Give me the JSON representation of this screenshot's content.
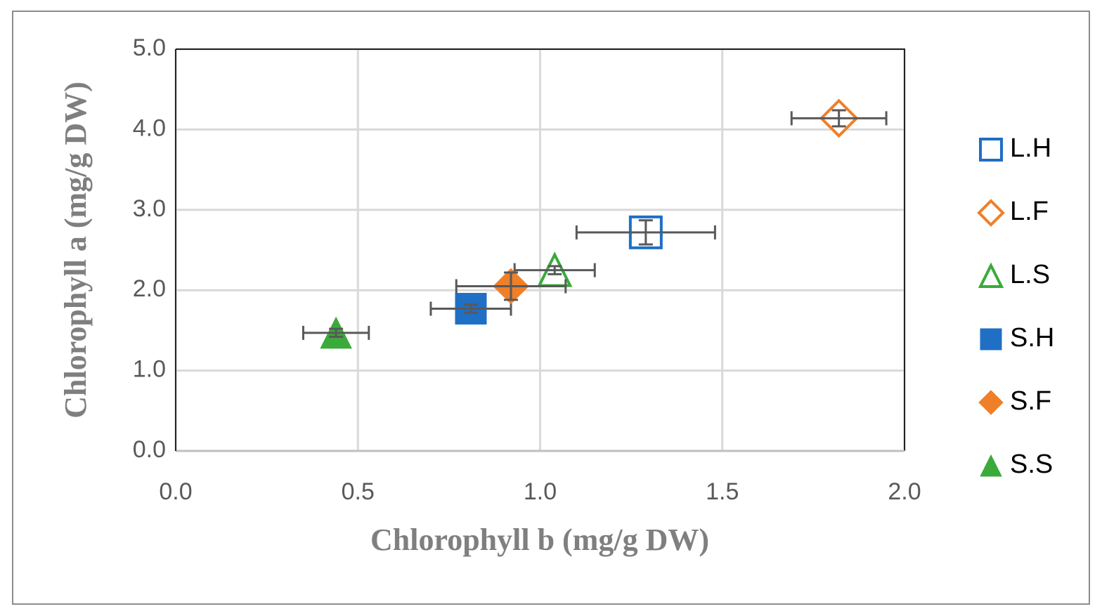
{
  "chart_data": {
    "type": "scatter",
    "x_label": "Chlorophyll b (mg/g DW)",
    "y_label": "Chlorophyll a (mg/g DW)",
    "xlim": [
      0,
      2
    ],
    "ylim": [
      0,
      5
    ],
    "xticks": [
      {
        "value": 0,
        "label": "0.0"
      },
      {
        "value": 0.5,
        "label": "0.5"
      },
      {
        "value": 1,
        "label": "1.0"
      },
      {
        "value": 1.5,
        "label": "1.5"
      },
      {
        "value": 2,
        "label": "2.0"
      }
    ],
    "yticks": [
      {
        "value": 0,
        "label": "0.0"
      },
      {
        "value": 1,
        "label": "1.0"
      },
      {
        "value": 2,
        "label": "2.0"
      },
      {
        "value": 3,
        "label": "3.0"
      },
      {
        "value": 4,
        "label": "4.0"
      },
      {
        "value": 5,
        "label": "5.0"
      }
    ],
    "grid": true,
    "legend": "right",
    "series": [
      {
        "name": "L.H",
        "color": "#1f6fc5",
        "marker": "square",
        "filled": false,
        "x": [
          1.29
        ],
        "y": [
          2.72
        ],
        "xerr": [
          0.19
        ],
        "yerr": [
          0.15
        ]
      },
      {
        "name": "L.F",
        "color": "#f07f2a",
        "marker": "diamond",
        "filled": false,
        "x": [
          1.82
        ],
        "y": [
          4.14
        ],
        "xerr": [
          0.13
        ],
        "yerr": [
          0.1
        ]
      },
      {
        "name": "L.S",
        "color": "#3aaa3a",
        "marker": "triangle",
        "filled": false,
        "x": [
          1.04
        ],
        "y": [
          2.25
        ],
        "xerr": [
          0.11
        ],
        "yerr": [
          0.05
        ]
      },
      {
        "name": "S.H",
        "color": "#1f6fc5",
        "marker": "square",
        "filled": true,
        "x": [
          0.81
        ],
        "y": [
          1.77
        ],
        "xerr": [
          0.11
        ],
        "yerr": [
          0.05
        ]
      },
      {
        "name": "S.F",
        "color": "#f07f2a",
        "marker": "diamond",
        "filled": true,
        "x": [
          0.92
        ],
        "y": [
          2.05
        ],
        "xerr": [
          0.15
        ],
        "yerr": [
          0.17
        ]
      },
      {
        "name": "S.S",
        "color": "#3aaa3a",
        "marker": "triangle",
        "filled": true,
        "x": [
          0.44
        ],
        "y": [
          1.47
        ],
        "xerr": [
          0.09
        ],
        "yerr": [
          0.05
        ]
      }
    ]
  }
}
